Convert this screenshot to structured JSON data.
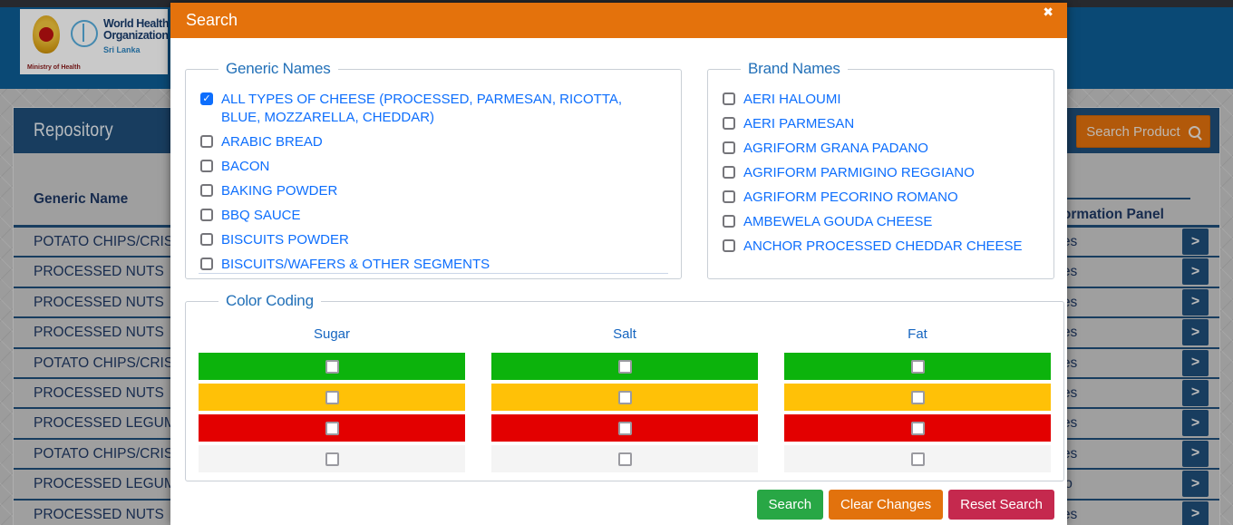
{
  "page": {
    "logo": {
      "ministry_label": "Ministry of Health",
      "who_name_line1": "World Health",
      "who_name_line2": "Organization",
      "who_region": "Sri Lanka"
    },
    "repository": {
      "title": "Repository",
      "search_product_button": "Search Product"
    },
    "table": {
      "col_generic": "Generic Name",
      "col_info_panel": "Information Panel",
      "rows": [
        {
          "generic_name": "POTATO CHIPS/CRISPS",
          "information_panel": "Yes"
        },
        {
          "generic_name": "PROCESSED NUTS",
          "information_panel": "Yes"
        },
        {
          "generic_name": "PROCESSED NUTS",
          "information_panel": "Yes"
        },
        {
          "generic_name": "PROCESSED NUTS",
          "information_panel": "Yes"
        },
        {
          "generic_name": "POTATO CHIPS/CRISPS",
          "information_panel": "Yes"
        },
        {
          "generic_name": "PROCESSED NUTS",
          "information_panel": "Yes"
        },
        {
          "generic_name": "PROCESSED LEGUMES",
          "information_panel": "Yes"
        },
        {
          "generic_name": "POTATO CHIPS/CRISPS",
          "information_panel": "Yes"
        },
        {
          "generic_name": "PROCESSED LEGUMES",
          "information_panel": "No"
        },
        {
          "generic_name": "PROCESSED NUTS",
          "information_panel": "Yes"
        }
      ]
    }
  },
  "icons": {
    "close": "✖",
    "check": "✓",
    "chevron": ">"
  },
  "modal": {
    "title": "Search",
    "generic_names": {
      "legend": "Generic Names",
      "items": [
        {
          "label": "ALL TYPES OF CHEESE (PROCESSED, PARMESAN, RICOTTA, BLUE, MOZZARELLA, CHEDDAR)",
          "checked": true
        },
        {
          "label": "ARABIC BREAD",
          "checked": false
        },
        {
          "label": "BACON",
          "checked": false
        },
        {
          "label": "BAKING POWDER",
          "checked": false
        },
        {
          "label": "BBQ SAUCE",
          "checked": false
        },
        {
          "label": "BISCUITS POWDER",
          "checked": false
        },
        {
          "label": "BISCUITS/WAFERS & OTHER SEGMENTS",
          "checked": false
        }
      ]
    },
    "brand_names": {
      "legend": "Brand Names",
      "items": [
        {
          "label": "AERI HALOUMI",
          "checked": false
        },
        {
          "label": "AERI PARMESAN",
          "checked": false
        },
        {
          "label": "AGRIFORM GRANA PADANO",
          "checked": false
        },
        {
          "label": "AGRIFORM PARMIGINO REGGIANO",
          "checked": false
        },
        {
          "label": "AGRIFORM PECORINO ROMANO",
          "checked": false
        },
        {
          "label": "AMBEWELA GOUDA CHEESE",
          "checked": false
        },
        {
          "label": "ANCHOR PROCESSED CHEDDAR CHEESE",
          "checked": false
        }
      ]
    },
    "color_coding": {
      "legend": "Color Coding",
      "columns": [
        "Sugar",
        "Salt",
        "Fat"
      ],
      "levels": [
        {
          "name": "green",
          "color": "#0CB30C",
          "checked": false
        },
        {
          "name": "amber",
          "color": "#FFC107",
          "checked": false
        },
        {
          "name": "red",
          "color": "#E30000",
          "checked": false
        },
        {
          "name": "none",
          "color": "#F4F4F4",
          "checked": false
        }
      ]
    },
    "footer": {
      "search_label": "Search",
      "clear_label": "Clear Changes",
      "reset_label": "Reset Search"
    },
    "colors": {
      "header_orange": "#E4720C",
      "search_green": "#28A745",
      "clear_orange": "#E2720D",
      "reset_crimson": "#C5294E"
    }
  }
}
